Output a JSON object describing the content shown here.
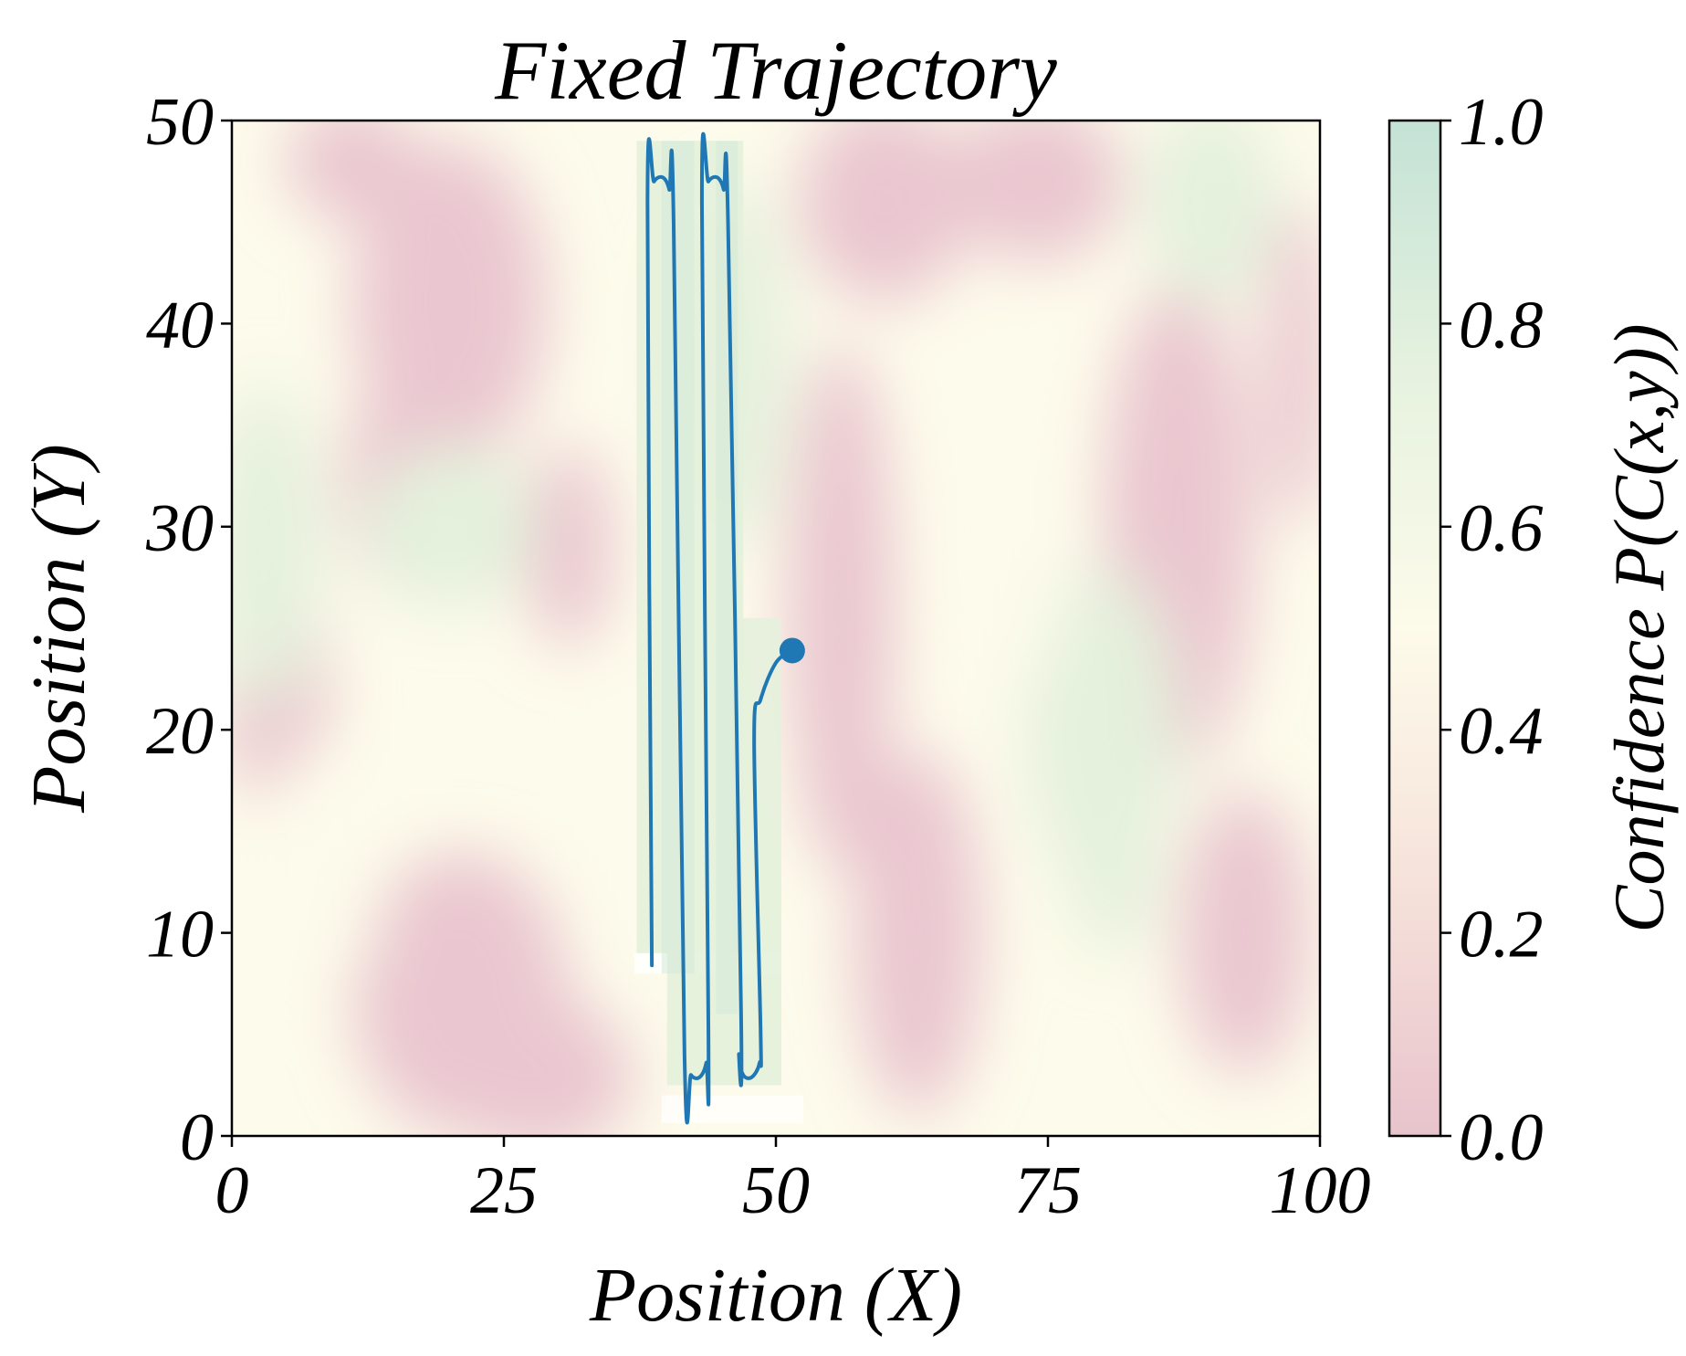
{
  "chart_data": {
    "type": "heatmap",
    "title": "Fixed Trajectory",
    "xlabel": "Position (X)",
    "ylabel": "Position (Y)",
    "xlim": [
      0,
      100
    ],
    "ylim": [
      0,
      50
    ],
    "xticks": [
      "0",
      "25",
      "50",
      "75",
      "100"
    ],
    "yticks": [
      "0",
      "10",
      "20",
      "30",
      "40",
      "50"
    ],
    "grid": false,
    "colorbar": {
      "label": "Confidence P(C(x,y))",
      "range": [
        0.0,
        1.0
      ],
      "ticks": [
        "0.0",
        "0.2",
        "0.4",
        "0.6",
        "0.8",
        "1.0"
      ],
      "colors": [
        "#e8c3cc",
        "#f6e2da",
        "#fdfbea",
        "#e6f2df",
        "#c4e2d6"
      ]
    },
    "trajectory": {
      "color": "#1f77b4",
      "points": [
        [
          38.6,
          8.4
        ],
        [
          38.2,
          46.0
        ],
        [
          38.8,
          47.0
        ],
        [
          39.6,
          47.2
        ],
        [
          40.2,
          46.6
        ],
        [
          40.6,
          45.0
        ],
        [
          41.6,
          4.0
        ],
        [
          42.2,
          3.0
        ],
        [
          43.0,
          2.9
        ],
        [
          43.6,
          3.6
        ],
        [
          43.8,
          5.0
        ],
        [
          43.2,
          46.0
        ],
        [
          43.8,
          47.0
        ],
        [
          44.6,
          47.2
        ],
        [
          45.2,
          46.6
        ],
        [
          45.6,
          45.0
        ],
        [
          46.8,
          6.0
        ],
        [
          46.6,
          4.0
        ],
        [
          47.0,
          3.0
        ],
        [
          47.8,
          2.9
        ],
        [
          48.5,
          3.6
        ],
        [
          48.6,
          5.0
        ],
        [
          48.0,
          19.5
        ],
        [
          48.6,
          21.5
        ],
        [
          50.0,
          23.3
        ],
        [
          51.5,
          23.9
        ]
      ],
      "end_marker": [
        51.5,
        23.9
      ]
    },
    "field_colors": {
      "red": "#eac7d0",
      "cream": "#fdfbeb",
      "green": "#e4f1dc",
      "strong_green": "#d3e9d9"
    }
  }
}
